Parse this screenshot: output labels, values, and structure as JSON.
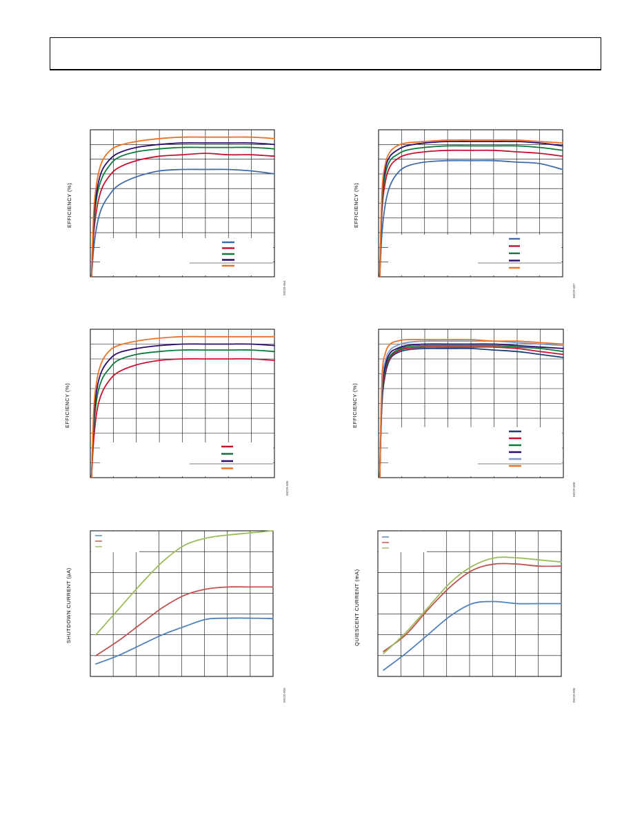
{
  "chart_data": [
    {
      "type": "line",
      "ylabel": "EFFICIENCY (%)",
      "figure_id": "09229-004",
      "x": [
        0.05,
        0.15,
        0.3,
        0.5,
        0.8,
        1.2,
        2,
        3,
        4,
        5,
        6,
        7,
        8
      ],
      "xlim": [
        0,
        8
      ],
      "ylim": [
        0,
        100
      ],
      "grid": true,
      "legend": "bottom-right",
      "series": [
        {
          "color": "#3d6aa8",
          "values": [
            0,
            20,
            36,
            47,
            55,
            62,
            68,
            72,
            73,
            73,
            73,
            72,
            70
          ]
        },
        {
          "color": "#c8102e",
          "values": [
            0,
            30,
            48,
            60,
            68,
            74,
            79,
            82,
            83,
            84,
            83,
            83,
            82
          ]
        },
        {
          "color": "#0a7a3a",
          "values": [
            0,
            36,
            56,
            67,
            75,
            81,
            85,
            87,
            88,
            88,
            88,
            88,
            87
          ]
        },
        {
          "color": "#2a0a6e",
          "values": [
            0,
            40,
            60,
            72,
            79,
            84,
            88,
            90,
            91,
            91,
            91,
            91,
            90
          ]
        },
        {
          "color": "#f07020",
          "values": [
            0,
            45,
            66,
            78,
            85,
            89,
            92,
            94,
            95,
            95,
            95,
            95,
            94
          ]
        }
      ]
    },
    {
      "type": "line",
      "ylabel": "EFFICIENCY (%)",
      "figure_id": "09229-007",
      "x": [
        0.05,
        0.15,
        0.3,
        0.5,
        0.8,
        1.2,
        2,
        3,
        4,
        5,
        6,
        7,
        8
      ],
      "xlim": [
        0,
        8
      ],
      "ylim": [
        0,
        100
      ],
      "grid": true,
      "legend": "bottom-right",
      "series": [
        {
          "color": "#3d6aa8",
          "values": [
            0,
            30,
            50,
            62,
            70,
            75,
            78,
            79,
            79,
            79,
            78,
            77,
            73
          ]
        },
        {
          "color": "#c8102e",
          "values": [
            0,
            45,
            65,
            75,
            80,
            83,
            85,
            86,
            86,
            86,
            85,
            84,
            82
          ]
        },
        {
          "color": "#0a7a3a",
          "values": [
            0,
            50,
            70,
            79,
            83,
            86,
            88,
            89,
            89,
            89,
            89,
            88,
            86
          ]
        },
        {
          "color": "#2a0a6e",
          "values": [
            0,
            55,
            74,
            82,
            86,
            89,
            91,
            92,
            92,
            92,
            92,
            91,
            89
          ]
        },
        {
          "color": "#f07020",
          "values": [
            0,
            58,
            77,
            85,
            89,
            91,
            92,
            93,
            93,
            93,
            93,
            92,
            91
          ]
        }
      ]
    },
    {
      "type": "line",
      "ylabel": "EFFICIENCY (%)",
      "figure_id": "09229-005",
      "x": [
        0.05,
        0.15,
        0.3,
        0.5,
        0.8,
        1.2,
        2,
        3,
        4,
        5,
        6,
        7,
        8
      ],
      "xlim": [
        0,
        8
      ],
      "ylim": [
        0,
        100
      ],
      "grid": true,
      "legend": "bottom-right",
      "series": [
        {
          "color": "#c8102e",
          "values": [
            0,
            26,
            46,
            57,
            65,
            71,
            76,
            79,
            80,
            80,
            80,
            80,
            79
          ]
        },
        {
          "color": "#0a7a3a",
          "values": [
            0,
            34,
            55,
            66,
            73,
            79,
            83,
            85,
            86,
            86,
            86,
            86,
            85
          ]
        },
        {
          "color": "#2a0a6e",
          "values": [
            0,
            40,
            61,
            72,
            79,
            84,
            87,
            89,
            90,
            90,
            90,
            90,
            89
          ]
        },
        {
          "color": "#f07020",
          "values": [
            0,
            46,
            67,
            78,
            85,
            89,
            92,
            94,
            95,
            95,
            95,
            95,
            95
          ]
        }
      ]
    },
    {
      "type": "line",
      "ylabel": "EFFICIENCY (%)",
      "figure_id": "09229-008",
      "x": [
        0.05,
        0.15,
        0.3,
        0.5,
        0.8,
        1.2,
        2,
        3,
        4,
        5,
        6,
        7,
        8
      ],
      "xlim": [
        0,
        8
      ],
      "ylim": [
        0,
        100
      ],
      "grid": true,
      "legend": "bottom-right",
      "series": [
        {
          "color": "#1a3c7a",
          "values": [
            0,
            50,
            70,
            80,
            84,
            86,
            87,
            87,
            87,
            86,
            85,
            83,
            81
          ]
        },
        {
          "color": "#c8102e",
          "values": [
            0,
            52,
            72,
            81,
            85,
            87,
            88,
            88,
            88,
            88,
            87,
            85,
            83
          ]
        },
        {
          "color": "#0a7a3a",
          "values": [
            0,
            55,
            74,
            82,
            86,
            88,
            89,
            89,
            89,
            89,
            88,
            87,
            85
          ]
        },
        {
          "color": "#2a0a6e",
          "values": [
            0,
            58,
            76,
            84,
            87,
            89,
            90,
            90,
            90,
            90,
            89,
            88,
            87
          ]
        },
        {
          "color": "#7f97c8",
          "values": [
            0,
            62,
            79,
            86,
            89,
            91,
            92,
            92,
            92,
            92,
            91,
            90,
            89
          ]
        },
        {
          "color": "#f07020",
          "values": [
            0,
            68,
            84,
            90,
            92,
            93,
            93,
            93,
            93,
            92,
            92,
            91,
            90
          ]
        }
      ]
    },
    {
      "type": "line",
      "ylabel": "SHUTDOWN CURRENT (µA)",
      "figure_id": "09229-009",
      "x": [
        0,
        1,
        2,
        3,
        4,
        5,
        6,
        7,
        8
      ],
      "xlim": [
        -0.25,
        8
      ],
      "ylim": [
        0,
        7
      ],
      "grid": true,
      "legend": "top-left",
      "series": [
        {
          "color": "#4f81bd",
          "values": [
            0.6,
            1.0,
            1.5,
            2.0,
            2.4,
            2.75,
            2.8,
            2.8,
            2.78
          ]
        },
        {
          "color": "#c0504d",
          "values": [
            1.0,
            1.7,
            2.5,
            3.3,
            3.9,
            4.2,
            4.3,
            4.3,
            4.3
          ]
        },
        {
          "color": "#9bbb59",
          "values": [
            2.0,
            3.2,
            4.4,
            5.5,
            6.3,
            6.65,
            6.8,
            6.9,
            7.0
          ]
        }
      ]
    },
    {
      "type": "line",
      "ylabel": "QUIESCENT CURRENT (mA)",
      "figure_id": "09229-006",
      "x": [
        0,
        1,
        2,
        3,
        4,
        5,
        6,
        7,
        8
      ],
      "xlim": [
        -0.25,
        8
      ],
      "ylim": [
        0,
        7
      ],
      "grid": true,
      "legend": "top-left",
      "series": [
        {
          "color": "#4f81bd",
          "values": [
            0.3,
            1.1,
            2.0,
            2.9,
            3.5,
            3.6,
            3.5,
            3.5,
            3.5
          ]
        },
        {
          "color": "#c0504d",
          "values": [
            1.2,
            2.0,
            3.2,
            4.3,
            5.1,
            5.4,
            5.4,
            5.3,
            5.3
          ]
        },
        {
          "color": "#9bbb59",
          "values": [
            1.1,
            2.1,
            3.3,
            4.5,
            5.3,
            5.7,
            5.7,
            5.6,
            5.5
          ]
        }
      ]
    }
  ]
}
